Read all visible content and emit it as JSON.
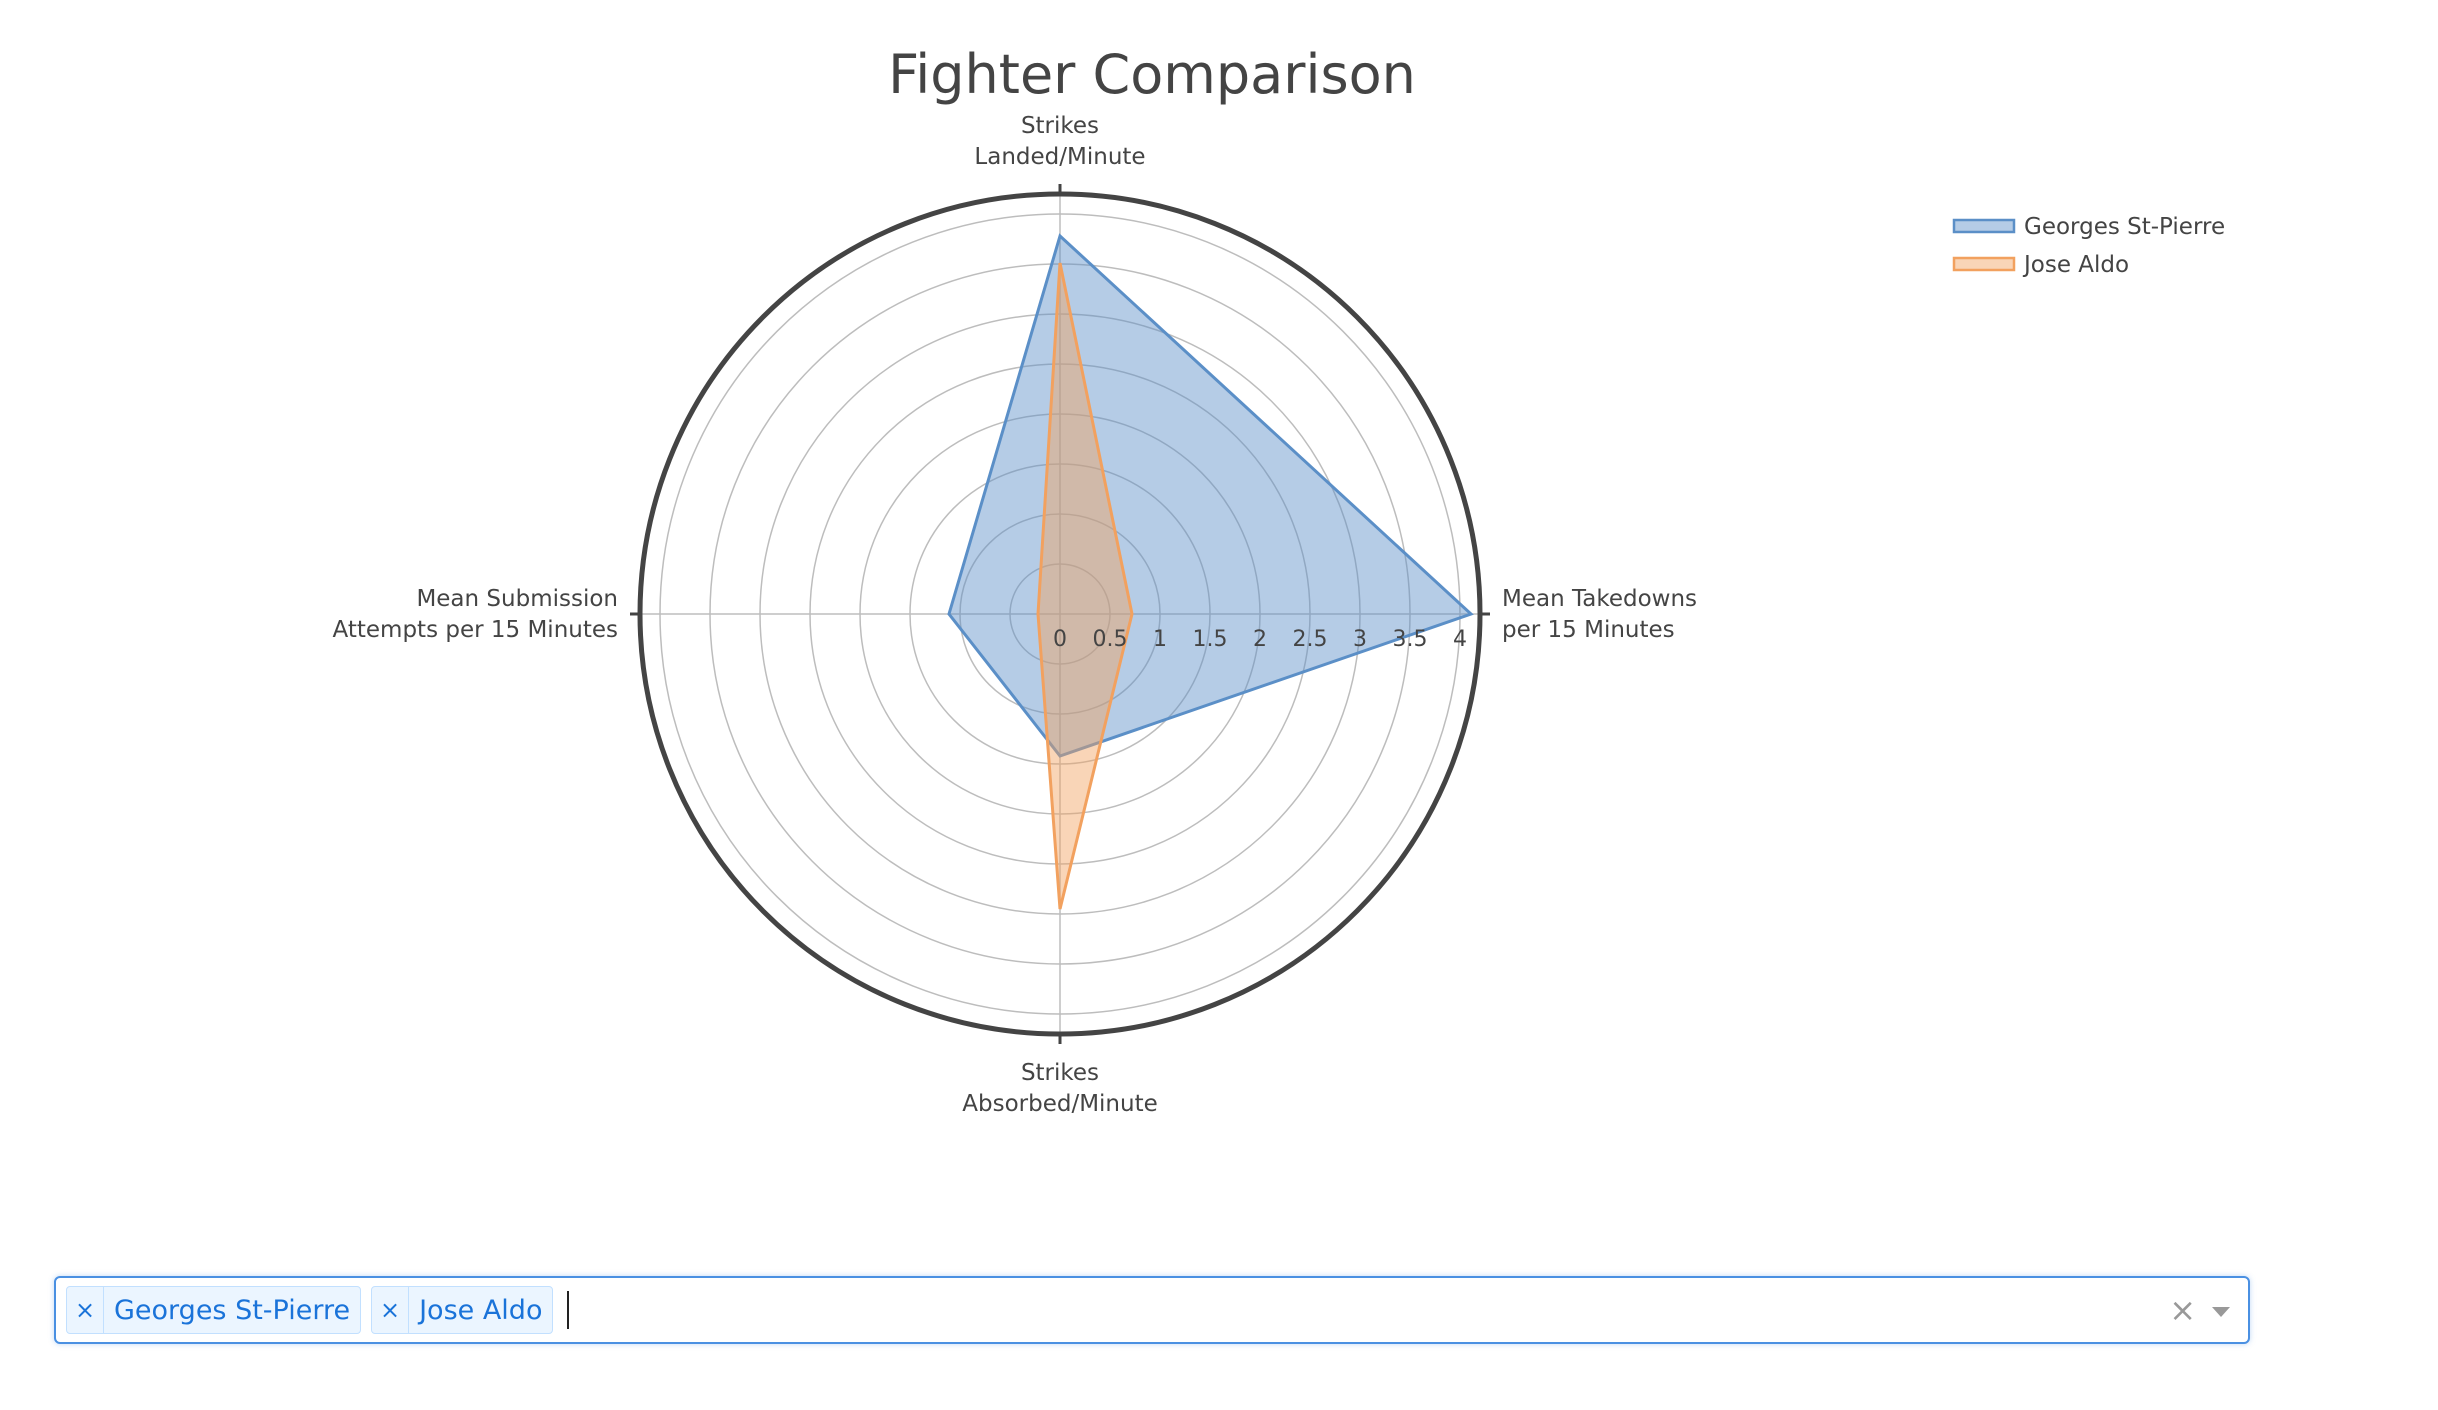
{
  "chart_data": {
    "type": "radar",
    "title": "Fighter Comparison",
    "axes": [
      {
        "label_lines": [
          "Strikes",
          "Landed/Minute"
        ]
      },
      {
        "label_lines": [
          "Mean Takedowns",
          "per 15 Minutes"
        ]
      },
      {
        "label_lines": [
          "Strikes",
          "Absorbed/Minute"
        ]
      },
      {
        "label_lines": [
          "Mean Submission",
          "Attempts per 15 Minutes"
        ]
      }
    ],
    "radial_range": [
      0,
      4.2
    ],
    "radial_ticks": [
      "0",
      "0.5",
      "1",
      "1.5",
      "2",
      "2.5",
      "3",
      "3.5",
      "4"
    ],
    "radial_tick_values": [
      0,
      0.5,
      1,
      1.5,
      2,
      2.5,
      3,
      3.5,
      4
    ],
    "series": [
      {
        "name": "Georges St-Pierre",
        "color": "#5b8fc7",
        "fill": "rgba(91,143,199,0.45)",
        "values": [
          3.78,
          4.11,
          1.42,
          1.11
        ]
      },
      {
        "name": "Jose Aldo",
        "color": "#f2a15f",
        "fill": "rgba(242,161,95,0.45)",
        "values": [
          3.51,
          0.72,
          2.95,
          0.22
        ]
      }
    ],
    "legend": {
      "position": "top-right"
    },
    "grid": true
  },
  "selector": {
    "chips": [
      {
        "remove_label": "×",
        "label": "Georges St-Pierre"
      },
      {
        "remove_label": "×",
        "label": "Jose Aldo"
      }
    ],
    "clear_label": "×"
  }
}
